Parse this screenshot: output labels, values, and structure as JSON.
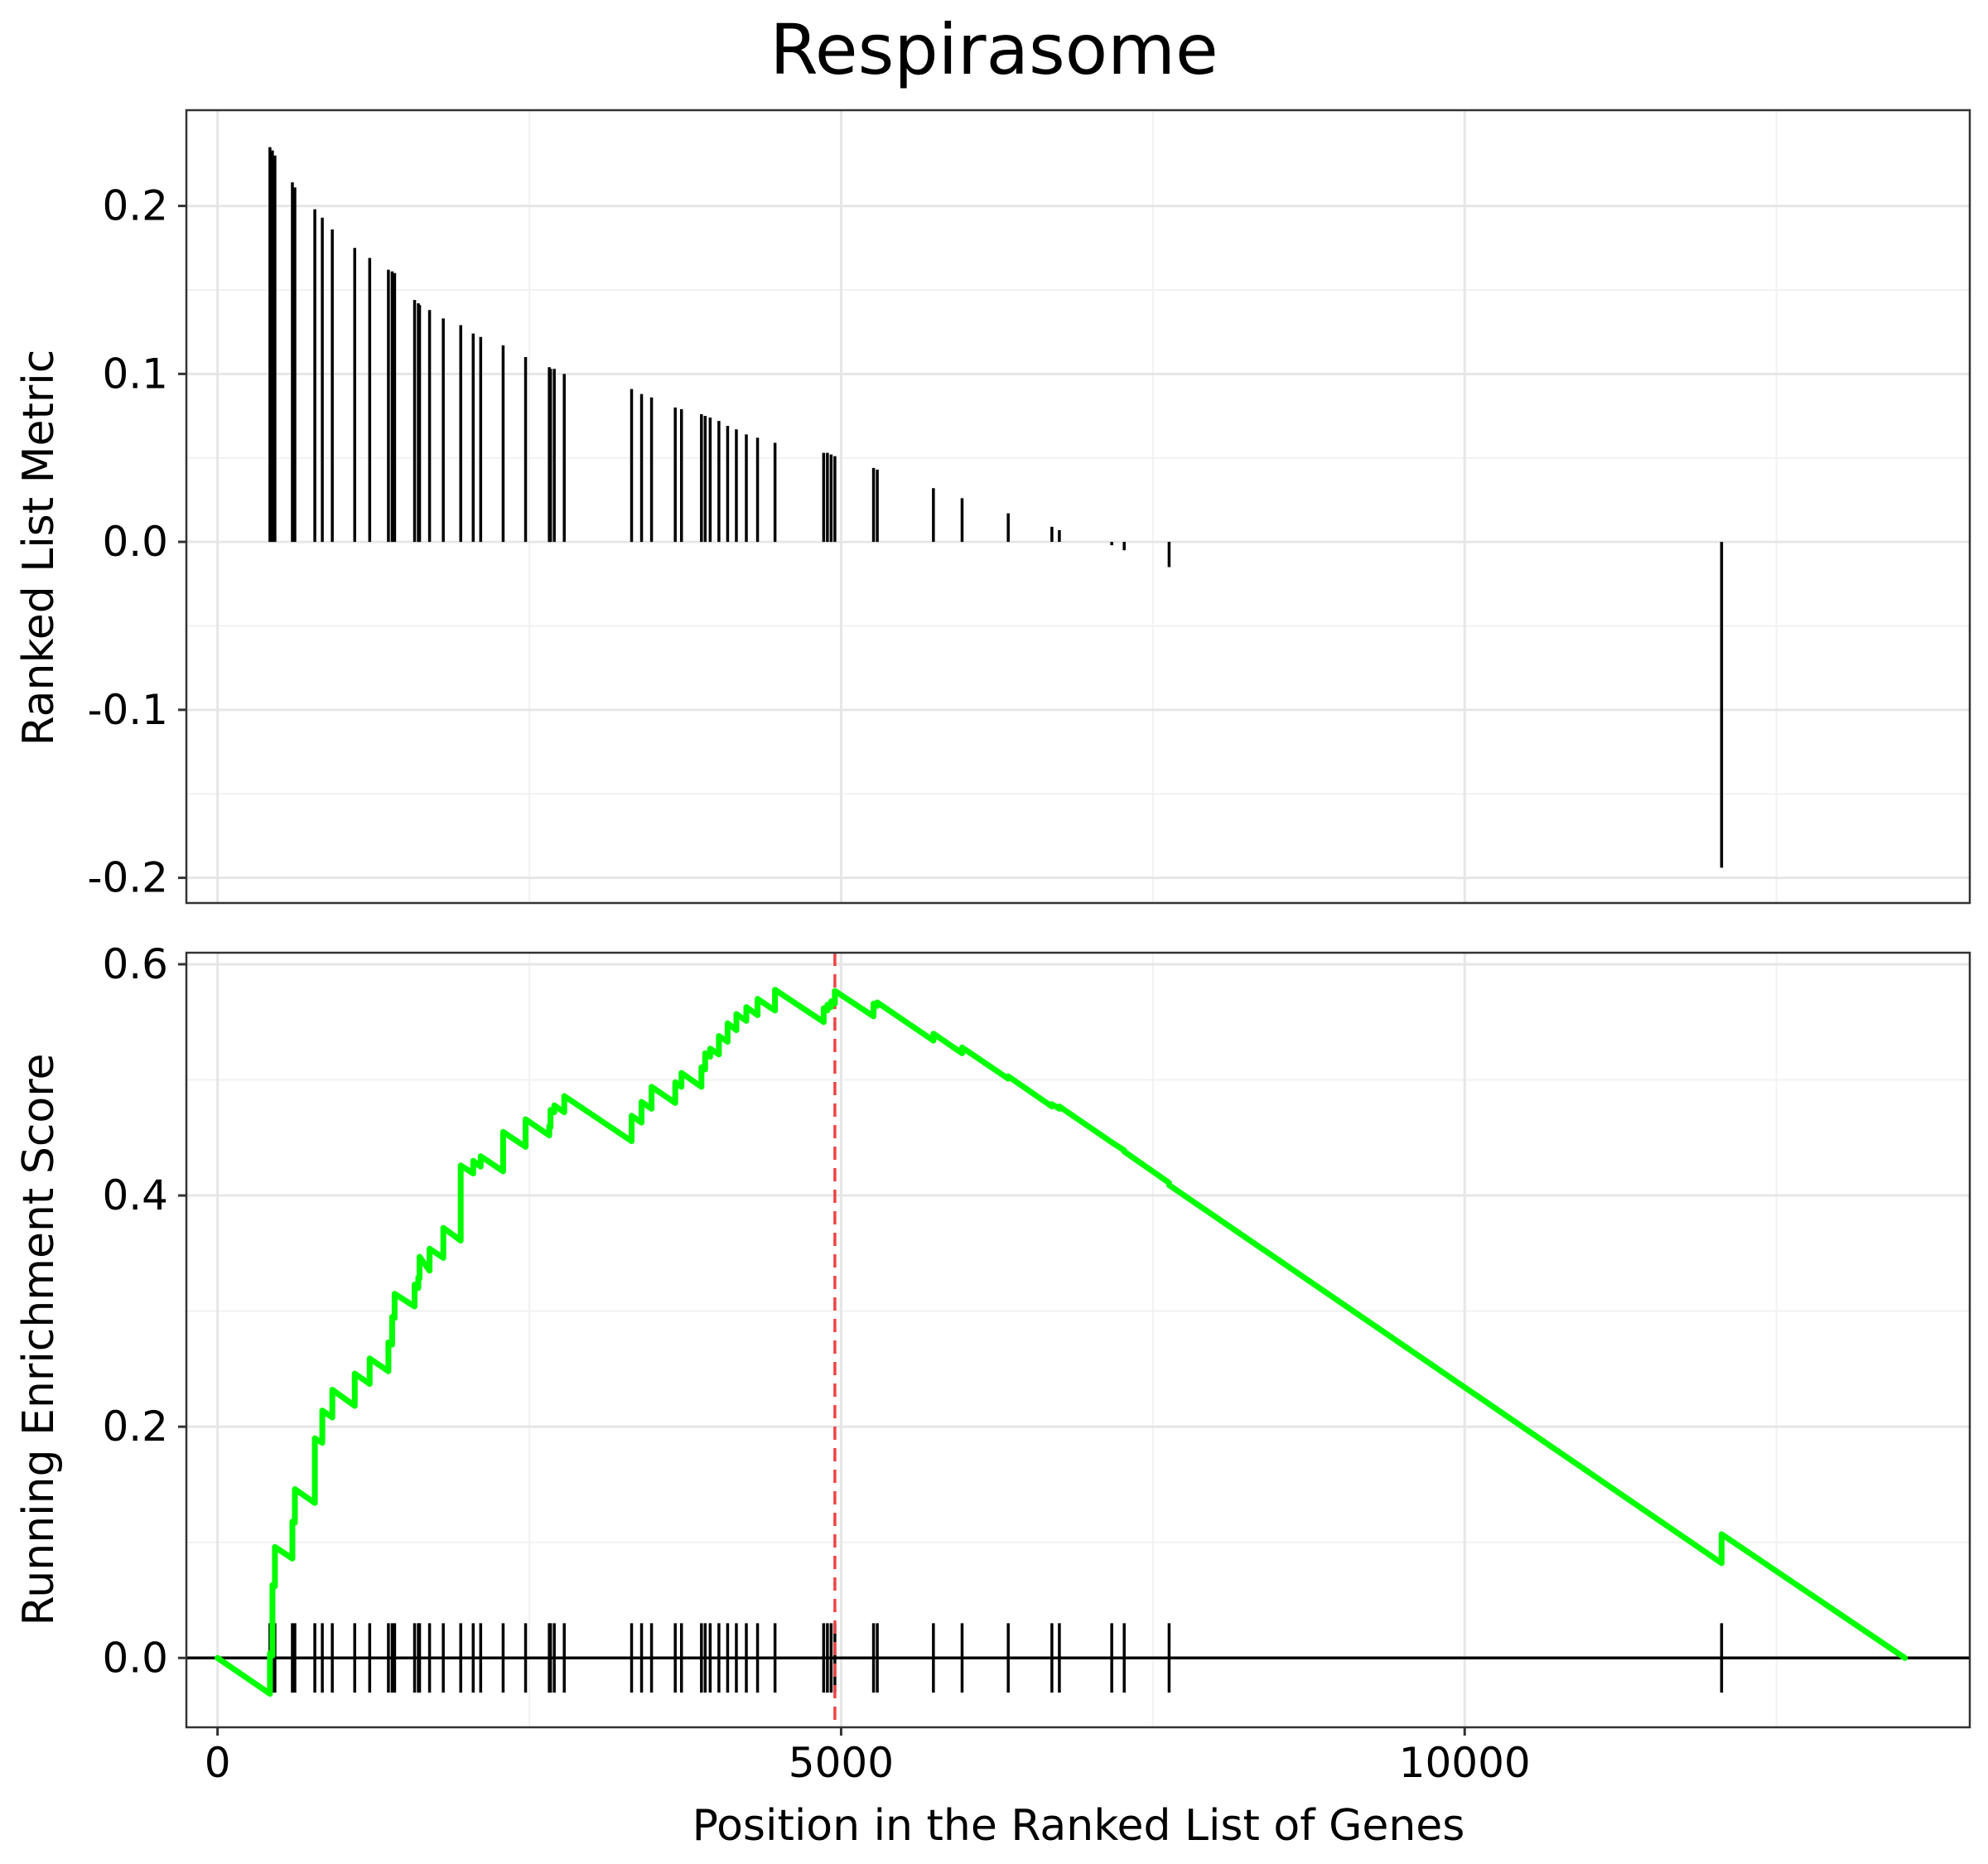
{
  "chart_data": {
    "type": "gsea-enrichment-plot",
    "title": "Respirasome",
    "xlabel": "Position in the Ranked List of Genes",
    "xlim": [
      -250,
      14050
    ],
    "x_ticks": [
      0,
      5000,
      10000
    ],
    "x_tick_labels": [
      "0",
      "5000",
      "10000"
    ],
    "grid": true,
    "panels": {
      "ranked_metric": {
        "ylabel": "Ranked List Metric",
        "ylim": [
          -0.215,
          0.257
        ],
        "y_ticks": [
          0.2,
          0.1,
          0.0,
          -0.1,
          -0.2
        ],
        "y_tick_labels": [
          "0.2",
          "0.1",
          "0.0",
          "-0.1",
          "-0.2"
        ],
        "bars_x": [
          420,
          440,
          460,
          600,
          620,
          780,
          840,
          920,
          1100,
          1220,
          1370,
          1400,
          1420,
          1580,
          1610,
          1620,
          1700,
          1810,
          1950,
          2050,
          2110,
          2290,
          2470,
          2660,
          2670,
          2700,
          2780,
          3320,
          3400,
          3480,
          3670,
          3720,
          3880,
          3910,
          3950,
          4020,
          4090,
          4160,
          4240,
          4330,
          4470,
          4860,
          4890,
          4920,
          4950,
          5260,
          5290,
          5740,
          5970,
          6340,
          6690,
          6750,
          7170,
          7270,
          7630,
          12060
        ],
        "bars_value": [
          0.235,
          0.233,
          0.23,
          0.214,
          0.211,
          0.198,
          0.193,
          0.186,
          0.175,
          0.169,
          0.162,
          0.161,
          0.16,
          0.144,
          0.142,
          0.141,
          0.138,
          0.133,
          0.129,
          0.124,
          0.122,
          0.117,
          0.11,
          0.104,
          0.103,
          0.103,
          0.1,
          0.091,
          0.088,
          0.086,
          0.08,
          0.079,
          0.076,
          0.075,
          0.074,
          0.072,
          0.069,
          0.067,
          0.064,
          0.062,
          0.059,
          0.053,
          0.053,
          0.052,
          0.051,
          0.044,
          0.043,
          0.032,
          0.026,
          0.017,
          0.009,
          0.007,
          -0.002,
          -0.005,
          -0.015,
          -0.194
        ]
      },
      "running_es": {
        "ylabel": "Running Enrichment Score",
        "ylim": [
          -0.06,
          0.61
        ],
        "y_ticks": [
          0.6,
          0.4,
          0.2,
          0.0
        ],
        "y_tick_labels": [
          "0.6",
          "0.4",
          "0.2",
          "0.0"
        ],
        "hits_x": [
          420,
          440,
          460,
          600,
          620,
          780,
          840,
          920,
          1100,
          1220,
          1370,
          1400,
          1420,
          1580,
          1610,
          1620,
          1700,
          1810,
          1950,
          2050,
          2110,
          2290,
          2470,
          2660,
          2670,
          2700,
          2780,
          3320,
          3400,
          3480,
          3670,
          3720,
          3880,
          3910,
          3950,
          4020,
          4090,
          4160,
          4240,
          4330,
          4470,
          4860,
          4890,
          4920,
          4950,
          5260,
          5290,
          5740,
          5970,
          6340,
          6690,
          6750,
          7170,
          7270,
          7630,
          12060
        ],
        "series_x": [
          0,
          420,
          420,
          440,
          440,
          460,
          460,
          600,
          600,
          620,
          620,
          780,
          780,
          840,
          840,
          920,
          920,
          1100,
          1100,
          1220,
          1220,
          1370,
          1370,
          1400,
          1400,
          1420,
          1420,
          1580,
          1580,
          1610,
          1610,
          1620,
          1620,
          1700,
          1700,
          1810,
          1810,
          1950,
          1950,
          2050,
          2050,
          2110,
          2110,
          2290,
          2290,
          2470,
          2470,
          2660,
          2660,
          2670,
          2670,
          2700,
          2700,
          2780,
          2780,
          3320,
          3320,
          3400,
          3400,
          3480,
          3480,
          3670,
          3670,
          3720,
          3720,
          3880,
          3880,
          3910,
          3910,
          3950,
          3950,
          4020,
          4020,
          4090,
          4090,
          4160,
          4160,
          4240,
          4240,
          4330,
          4330,
          4470,
          4470,
          4860,
          4860,
          4890,
          4890,
          4920,
          4920,
          4950,
          4950,
          5260,
          5260,
          5290,
          5290,
          5740,
          5740,
          5970,
          5970,
          6340,
          6340,
          6690,
          6690,
          6750,
          6750,
          7170,
          7170,
          7270,
          7270,
          7630,
          7630,
          12060,
          12060,
          13530
        ],
        "series_y": [
          0.0,
          -0.031,
          0.004,
          0.002,
          0.063,
          0.062,
          0.096,
          0.086,
          0.118,
          0.117,
          0.146,
          0.134,
          0.19,
          0.186,
          0.214,
          0.208,
          0.232,
          0.218,
          0.246,
          0.237,
          0.259,
          0.248,
          0.273,
          0.271,
          0.295,
          0.294,
          0.315,
          0.304,
          0.323,
          0.32,
          0.329,
          0.328,
          0.347,
          0.335,
          0.354,
          0.346,
          0.372,
          0.361,
          0.426,
          0.419,
          0.43,
          0.425,
          0.434,
          0.421,
          0.455,
          0.442,
          0.466,
          0.452,
          0.46,
          0.459,
          0.474,
          0.472,
          0.478,
          0.472,
          0.486,
          0.447,
          0.469,
          0.463,
          0.481,
          0.475,
          0.494,
          0.48,
          0.498,
          0.494,
          0.506,
          0.494,
          0.511,
          0.509,
          0.523,
          0.52,
          0.527,
          0.522,
          0.538,
          0.533,
          0.549,
          0.543,
          0.557,
          0.551,
          0.563,
          0.556,
          0.57,
          0.56,
          0.578,
          0.55,
          0.562,
          0.56,
          0.565,
          0.563,
          0.568,
          0.566,
          0.577,
          0.555,
          0.566,
          0.564,
          0.567,
          0.534,
          0.54,
          0.523,
          0.528,
          0.501,
          0.503,
          0.477,
          0.479,
          0.475,
          0.477,
          0.446,
          0.446,
          0.439,
          0.438,
          0.411,
          0.409,
          0.082,
          0.107,
          0.0
        ],
        "peak_x": 4950,
        "colors": {
          "line": "#00ff00",
          "peak_line": "#ee4444",
          "hits": "#000000"
        }
      }
    }
  }
}
